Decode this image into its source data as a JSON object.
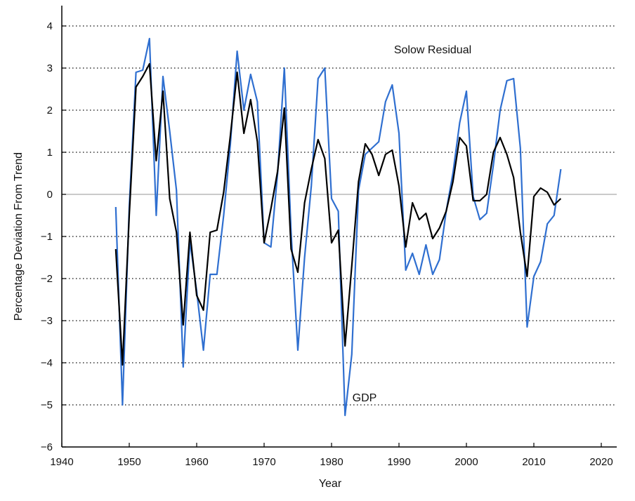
{
  "chart_data": {
    "type": "line",
    "title": "",
    "xlabel": "Year",
    "ylabel": "Percentage Deviation From Trend",
    "xlim": [
      1940,
      2023
    ],
    "ylim": [
      -6,
      4.5
    ],
    "xticks": [
      "1940",
      "1950",
      "1960",
      "1970",
      "1980",
      "1990",
      "2000",
      "2010",
      "2020"
    ],
    "yticks": [
      "4",
      "3",
      "2",
      "1",
      "0",
      "−1",
      "−2",
      "−3",
      "−4",
      "−5",
      "−6"
    ],
    "grid": "horizontal dotted",
    "colors": {
      "solow": "#2f6fd0",
      "gdp": "#000000",
      "zero_line": "#aaaaaa",
      "grid": "#333333"
    },
    "annotations": [
      {
        "text": "Solow Residual",
        "x": 1988,
        "y": 3.45
      },
      {
        "text": "GDP",
        "x": 1984,
        "y": -4.95
      }
    ],
    "x": [
      1948,
      1949,
      1950,
      1951,
      1952,
      1953,
      1954,
      1955,
      1956,
      1957,
      1958,
      1959,
      1960,
      1961,
      1962,
      1963,
      1964,
      1965,
      1966,
      1967,
      1968,
      1969,
      1970,
      1971,
      1972,
      1973,
      1974,
      1975,
      1976,
      1977,
      1978,
      1979,
      1980,
      1981,
      1982,
      1983,
      1984,
      1985,
      1986,
      1987,
      1988,
      1989,
      1990,
      1991,
      1992,
      1993,
      1994,
      1995,
      1996,
      1997,
      1998,
      1999,
      2000,
      2001,
      2002,
      2003,
      2004,
      2005,
      2006,
      2007,
      2008,
      2009,
      2010,
      2011,
      2012,
      2013,
      2014
    ],
    "series": [
      {
        "id": "solow",
        "values": [
          -0.3,
          -5.0,
          -0.3,
          2.9,
          2.95,
          3.7,
          -0.5,
          2.8,
          1.5,
          0.1,
          -4.1,
          -1.1,
          -2.3,
          -3.7,
          -1.9,
          -1.9,
          -0.5,
          1.2,
          3.4,
          2.0,
          2.85,
          2.2,
          -1.15,
          -1.25,
          0.5,
          3.0,
          -0.9,
          -3.7,
          -1.5,
          0.2,
          2.75,
          3.0,
          -0.1,
          -0.4,
          -5.25,
          -3.8,
          0.1,
          0.95,
          1.1,
          1.25,
          2.2,
          2.6,
          1.45,
          -1.8,
          -1.4,
          -1.9,
          -1.2,
          -1.9,
          -1.55,
          -0.4,
          0.5,
          1.7,
          2.45,
          -0.05,
          -0.6,
          -0.45,
          0.7,
          2.0,
          2.7,
          2.75,
          1.1,
          -3.15,
          -1.95,
          -1.6,
          -0.7,
          -0.5,
          0.6
        ]
      },
      {
        "id": "gdp",
        "values": [
          -1.3,
          -4.05,
          -0.5,
          2.55,
          2.8,
          3.1,
          0.8,
          2.45,
          -0.1,
          -0.9,
          -3.1,
          -0.9,
          -2.4,
          -2.75,
          -0.9,
          -0.85,
          0.05,
          1.4,
          2.9,
          1.45,
          2.25,
          1.25,
          -1.15,
          -0.35,
          0.55,
          2.05,
          -1.3,
          -1.85,
          -0.2,
          0.6,
          1.3,
          0.85,
          -1.15,
          -0.85,
          -3.6,
          -1.7,
          0.3,
          1.2,
          0.95,
          0.45,
          0.95,
          1.05,
          0.2,
          -1.25,
          -0.2,
          -0.6,
          -0.45,
          -1.05,
          -0.8,
          -0.4,
          0.3,
          1.35,
          1.15,
          -0.15,
          -0.15,
          0.0,
          1.0,
          1.35,
          0.95,
          0.4,
          -0.9,
          -1.95,
          -0.05,
          0.15,
          0.05,
          -0.25,
          -0.1
        ]
      }
    ]
  }
}
